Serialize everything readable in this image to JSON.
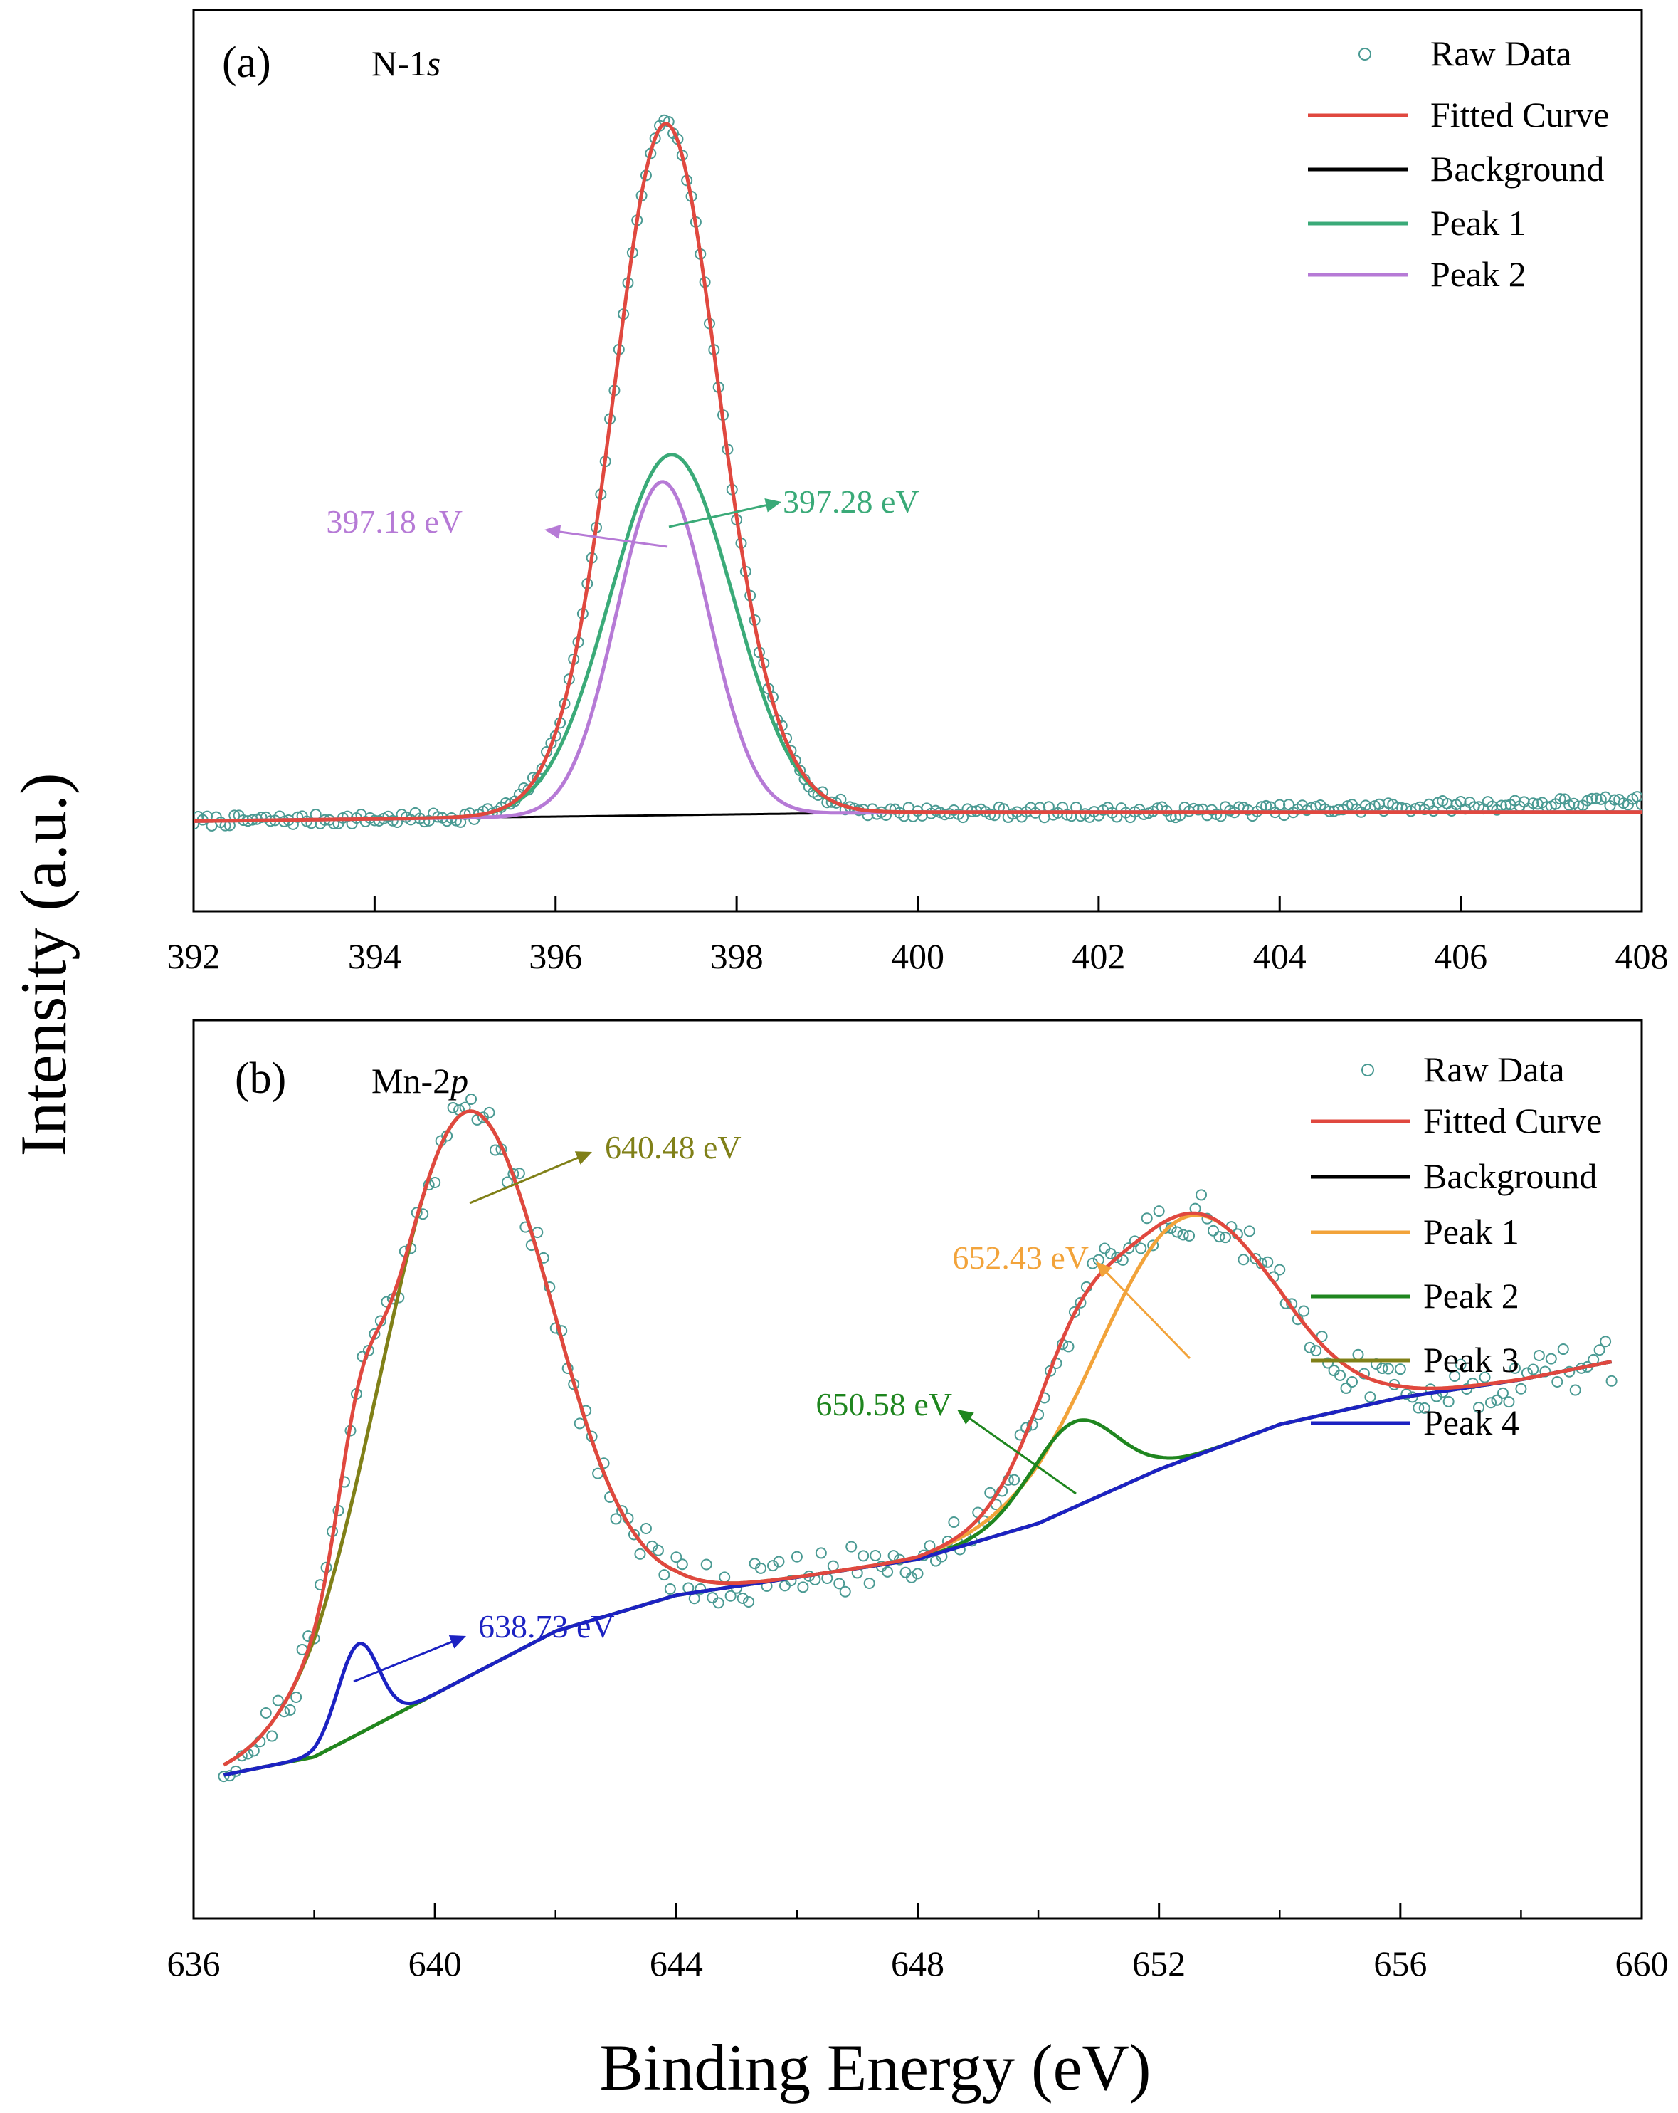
{
  "figure": {
    "ylabel": "Intensity (a.u.)",
    "xlabel": "Binding Energy (eV)"
  },
  "colors": {
    "raw": "#4a9a93",
    "fitted": "#e0483f",
    "background": "#000000",
    "a_peak1": "#3aaa78",
    "a_peak2": "#b67ad6",
    "b_peak1": "#f2a33a",
    "b_peak2": "#1f861f",
    "b_peak3": "#808018",
    "b_peak4": "#1c22c2"
  },
  "chart_data": [
    {
      "type": "scatter+line",
      "panel_label": "(a)",
      "element_label": "N-1",
      "element_orbital": "s",
      "xlim": [
        392,
        408
      ],
      "ylim": [
        0,
        1.0
      ],
      "xticks": [
        392,
        394,
        396,
        398,
        400,
        402,
        404,
        406,
        408
      ],
      "tick_labels": [
        "392",
        "394",
        "396",
        "398",
        "400",
        "402",
        "404",
        "406",
        "408"
      ],
      "legend": [
        "Raw Data",
        "Fitted Curve",
        "Background",
        "Peak 1",
        "Peak 2"
      ],
      "background": {
        "x": [
          392.0,
          400.0,
          408.0
        ],
        "y": [
          0.1,
          0.11,
          0.11
        ]
      },
      "peaks": [
        {
          "name": "Peak 1",
          "center": 397.28,
          "height": 0.4,
          "fwhm": 1.6
        },
        {
          "name": "Peak 2",
          "center": 397.18,
          "height": 0.37,
          "fwhm": 1.2
        }
      ],
      "raw_data": {
        "x_start": 392.0,
        "x_end": 408.0,
        "step": 0.05,
        "noise": 0.006,
        "tail_rise": 0.012
      },
      "annotations": [
        {
          "text": "397.18 eV",
          "points_to_x": 397.18,
          "color_key": "a_peak2"
        },
        {
          "text": "397.28 eV",
          "points_to_x": 397.28,
          "color_key": "a_peak1"
        }
      ]
    },
    {
      "type": "scatter+line",
      "panel_label": "(b)",
      "element_label": "Mn-2",
      "element_orbital": "p",
      "xlim": [
        636,
        660
      ],
      "ylim": [
        0,
        1.0
      ],
      "xticks": [
        636,
        640,
        644,
        648,
        652,
        656,
        660
      ],
      "tick_labels": [
        "636",
        "640",
        "644",
        "648",
        "652",
        "656",
        "660"
      ],
      "legend": [
        "Raw Data",
        "Fitted Curve",
        "Background",
        "Peak 1",
        "Peak 2",
        "Peak 3",
        "Peak 4"
      ],
      "background": {
        "x": [
          636.5,
          638.0,
          640.0,
          642.0,
          644.0,
          646.0,
          648.0,
          650.0,
          652.0,
          654.0,
          656.0,
          658.0,
          659.5
        ],
        "y": [
          0.16,
          0.18,
          0.25,
          0.32,
          0.36,
          0.38,
          0.4,
          0.44,
          0.5,
          0.55,
          0.58,
          0.6,
          0.62
        ]
      },
      "peaks": [
        {
          "name": "Peak 1",
          "center": 652.43,
          "height": 0.27,
          "fwhm": 3.4
        },
        {
          "name": "Peak 2",
          "center": 650.58,
          "height": 0.095,
          "fwhm": 1.7
        },
        {
          "name": "Peak 3",
          "center": 640.48,
          "height": 0.63,
          "fwhm": 3.3
        },
        {
          "name": "Peak 4",
          "center": 638.73,
          "height": 0.1,
          "fwhm": 0.8
        }
      ],
      "raw_data": {
        "x_start": 636.5,
        "x_end": 659.5,
        "step": 0.1,
        "noise": 0.025
      },
      "annotations": [
        {
          "text": "640.48 eV",
          "points_to_x": 640.48,
          "color_key": "b_peak3"
        },
        {
          "text": "652.43 eV",
          "points_to_x": 652.43,
          "color_key": "b_peak1"
        },
        {
          "text": "650.58 eV",
          "points_to_x": 650.58,
          "color_key": "b_peak2"
        },
        {
          "text": "638.73 eV",
          "points_to_x": 638.73,
          "color_key": "b_peak4"
        }
      ]
    }
  ]
}
